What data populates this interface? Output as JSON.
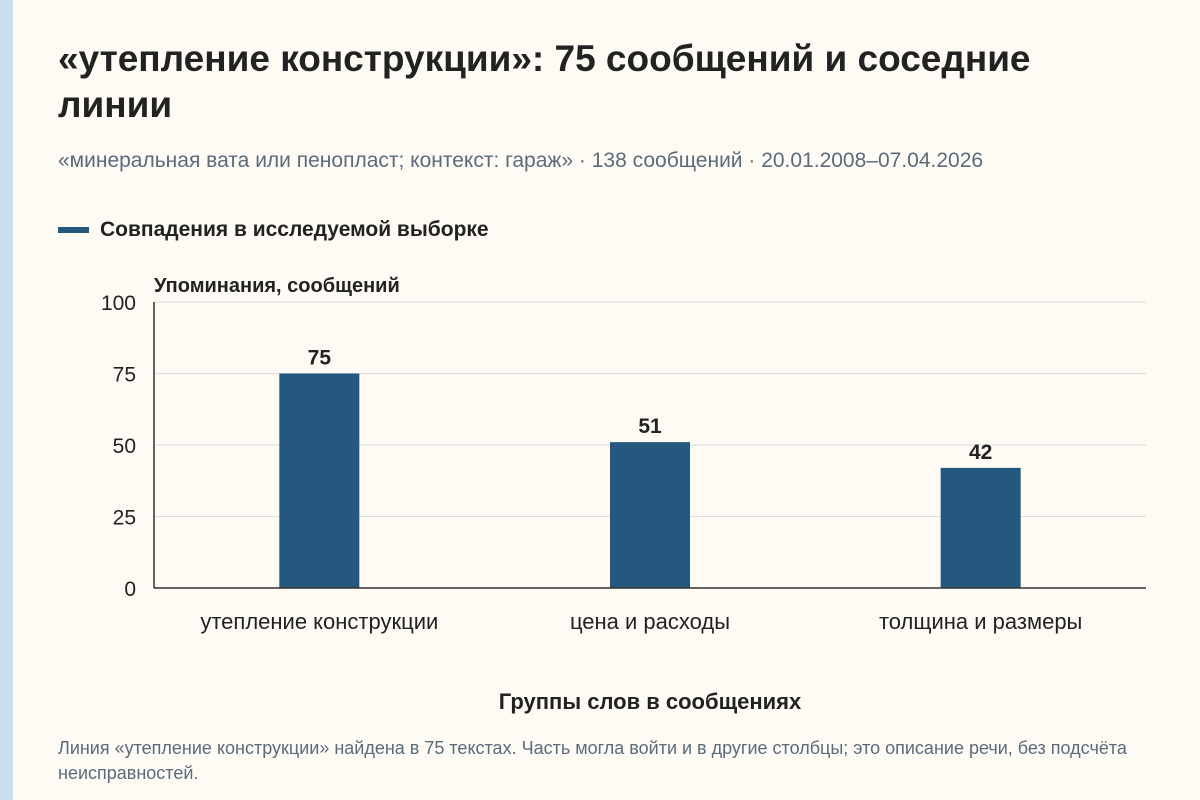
{
  "header": {
    "title": "«утепление конструкции»: 75 сообщений и соседние линии",
    "subtitle": "«минеральная вата или пенопласт; контекст: гараж» · 138 сообщений · 20.01.2008–07.04.2026"
  },
  "legend": {
    "label": "Совпадения в исследуемой выборке",
    "color": "#24587e"
  },
  "footnote": "Линия «утепление конструкции» найдена в 75 текстах. Часть могла войти и в другие столбцы; это описание речи, без подсчёта неисправностей.",
  "colors": {
    "background": "#fdfbf3",
    "bar": "#24587e",
    "accent_strip": "#c9dfee",
    "grid": "#dcdcdc",
    "axis": "#333333",
    "muted_text": "#5b6b7c"
  },
  "chart_data": {
    "type": "bar",
    "categories": [
      "утепление конструкции",
      "цена и расходы",
      "толщина и размеры"
    ],
    "series": [
      {
        "name": "Совпадения в исследуемой выборке",
        "values": [
          75,
          51,
          42
        ]
      }
    ],
    "data_labels": [
      "75",
      "51",
      "42"
    ],
    "xlabel": "Группы слов в сообщениях",
    "ylabel": "Упоминания, сообщений",
    "ylim": [
      0,
      100
    ],
    "yticks": [
      0,
      25,
      50,
      75,
      100
    ],
    "ytick_labels": [
      "0",
      "25",
      "50",
      "75",
      "100"
    ],
    "grid": true,
    "legend_position": "top-left"
  }
}
